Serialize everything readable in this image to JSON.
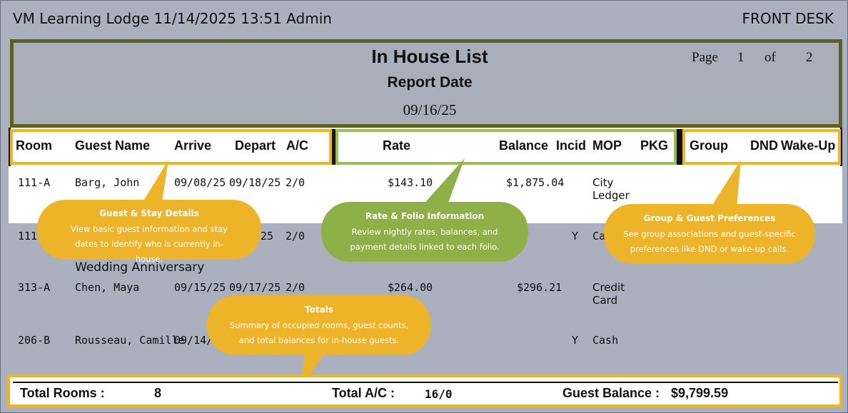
{
  "topbar": {
    "left": "VM Learning Lodge 11/14/2025 13:51 Admin",
    "right": "FRONT DESK"
  },
  "report": {
    "title": "In House List",
    "subtitle": "Report Date",
    "date": "09/16/25",
    "page_label": "Page",
    "page_num": "1",
    "of_label": "of",
    "page_total": "2"
  },
  "columns": {
    "room": "Room",
    "guest": "Guest Name",
    "arrive": "Arrive",
    "depart": "Depart",
    "ac": "A/C",
    "rate": "Rate",
    "balance": "Balance",
    "incid": "Incid",
    "mop": "MOP",
    "pkg": "PKG",
    "group": "Group",
    "dnd": "DND",
    "wake": "Wake-Up"
  },
  "rows": [
    {
      "room": "111-A",
      "guest": "Barg, John",
      "arrive": "09/08/25",
      "depart": "09/18/25",
      "ac": "2/0",
      "rate": "$143.10",
      "balance": "$1,875.04",
      "incid": "",
      "mop": "City Ledger"
    },
    {
      "room": "111",
      "guest": "",
      "arrive": "",
      "depart": "25",
      "ac": "2/0",
      "rate": "",
      "balance": "",
      "incid": "Y",
      "mop": "Ca",
      "note": "Wedding Anniversary"
    },
    {
      "room": "313-A",
      "guest": "Chen, Maya",
      "arrive": "09/15/25",
      "depart": "09/17/25",
      "ac": "2/0",
      "rate": "$264.00",
      "balance": "$296.21",
      "incid": "",
      "mop": "Credit Card"
    },
    {
      "room": "206-B",
      "guest": "Rousseau, Camille",
      "arrive": "09/14/",
      "depart": "",
      "ac": "",
      "rate": "",
      "balance": "",
      "incid": "Y",
      "mop": "Cash"
    }
  ],
  "callouts": {
    "guest": {
      "title": "Guest & Stay Details",
      "body": "View basic guest information and stay dates to identify who is currently in-house."
    },
    "rate": {
      "title": "Rate & Folio Information",
      "body": "Review nightly rates, balances, and payment details linked to each folio."
    },
    "group": {
      "title": "Group & Guest Preferences",
      "body": "See group associations and guest-specific preferences like DND or wake-up calls."
    },
    "totals": {
      "title": "Totals",
      "body": "Summary of occupied rooms, guest counts, and total balances for in-house guests."
    }
  },
  "footer": {
    "rooms_label": "Total Rooms :",
    "rooms_value": "8",
    "ac_label": "Total A/C :",
    "ac_value": "16/0",
    "balance_label": "Guest Balance :",
    "balance_value": "$9,799.59"
  },
  "colors": {
    "yellow": "#f0b51d",
    "green": "#9bbf52",
    "olive": "#5f5f1f",
    "bg": "#aab0bd"
  }
}
